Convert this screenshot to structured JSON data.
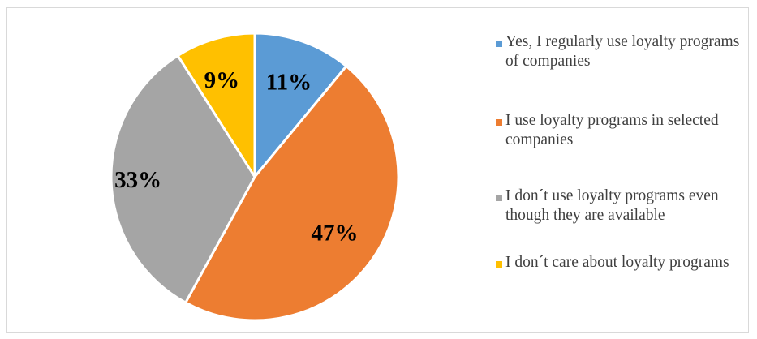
{
  "chart_data": {
    "type": "pie",
    "title": "",
    "legend_position": "right",
    "slices": [
      {
        "label": "Yes, I regularly use loyalty programs of companies",
        "value": 11,
        "value_label": "11%",
        "color": "#5B9BD5"
      },
      {
        "label": "I use loyalty programs in selected companies",
        "value": 47,
        "value_label": "47%",
        "color": "#ED7D31"
      },
      {
        "label": "I don´t use loyalty programs even though they are available",
        "value": 33,
        "value_label": "33%",
        "color": "#A5A5A5"
      },
      {
        "label": "I don´t care about loyalty programs",
        "value": 9,
        "value_label": "9%",
        "color": "#FFC000"
      }
    ]
  }
}
